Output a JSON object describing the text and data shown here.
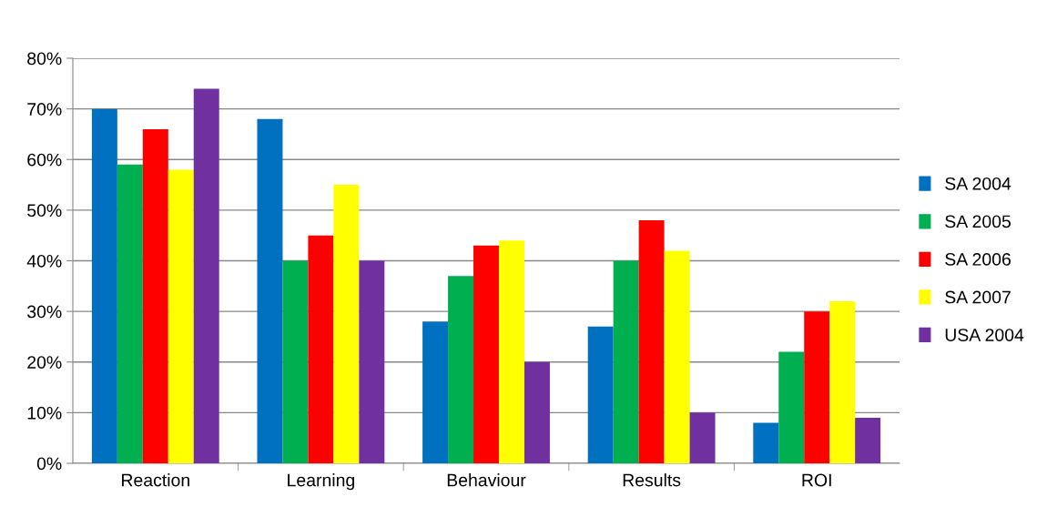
{
  "chart_data": {
    "type": "bar",
    "categories": [
      "Reaction",
      "Learning",
      "Behaviour",
      "Results",
      "ROI"
    ],
    "series": [
      {
        "name": "SA 2004",
        "color": "#0070c0",
        "values": [
          70,
          68,
          28,
          27,
          8
        ]
      },
      {
        "name": "SA 2005",
        "color": "#00b050",
        "values": [
          59,
          40,
          37,
          40,
          22
        ]
      },
      {
        "name": "SA 2006",
        "color": "#ff0000",
        "values": [
          66,
          45,
          43,
          48,
          30
        ]
      },
      {
        "name": "SA 2007",
        "color": "#ffff00",
        "values": [
          58,
          55,
          44,
          42,
          32
        ]
      },
      {
        "name": "USA 2004",
        "color": "#7030a0",
        "values": [
          74,
          40,
          20,
          10,
          9
        ]
      }
    ],
    "ylim": [
      0,
      80
    ],
    "yticks": [
      {
        "value": 0,
        "label": "0%"
      },
      {
        "value": 10,
        "label": "10%"
      },
      {
        "value": 20,
        "label": "20%"
      },
      {
        "value": 30,
        "label": "30%"
      },
      {
        "value": 40,
        "label": "40%"
      },
      {
        "value": 50,
        "label": "50%"
      },
      {
        "value": 60,
        "label": "60%"
      },
      {
        "value": 70,
        "label": "70%"
      },
      {
        "value": 80,
        "label": "80%"
      }
    ],
    "grid": "y",
    "legend": "right"
  }
}
